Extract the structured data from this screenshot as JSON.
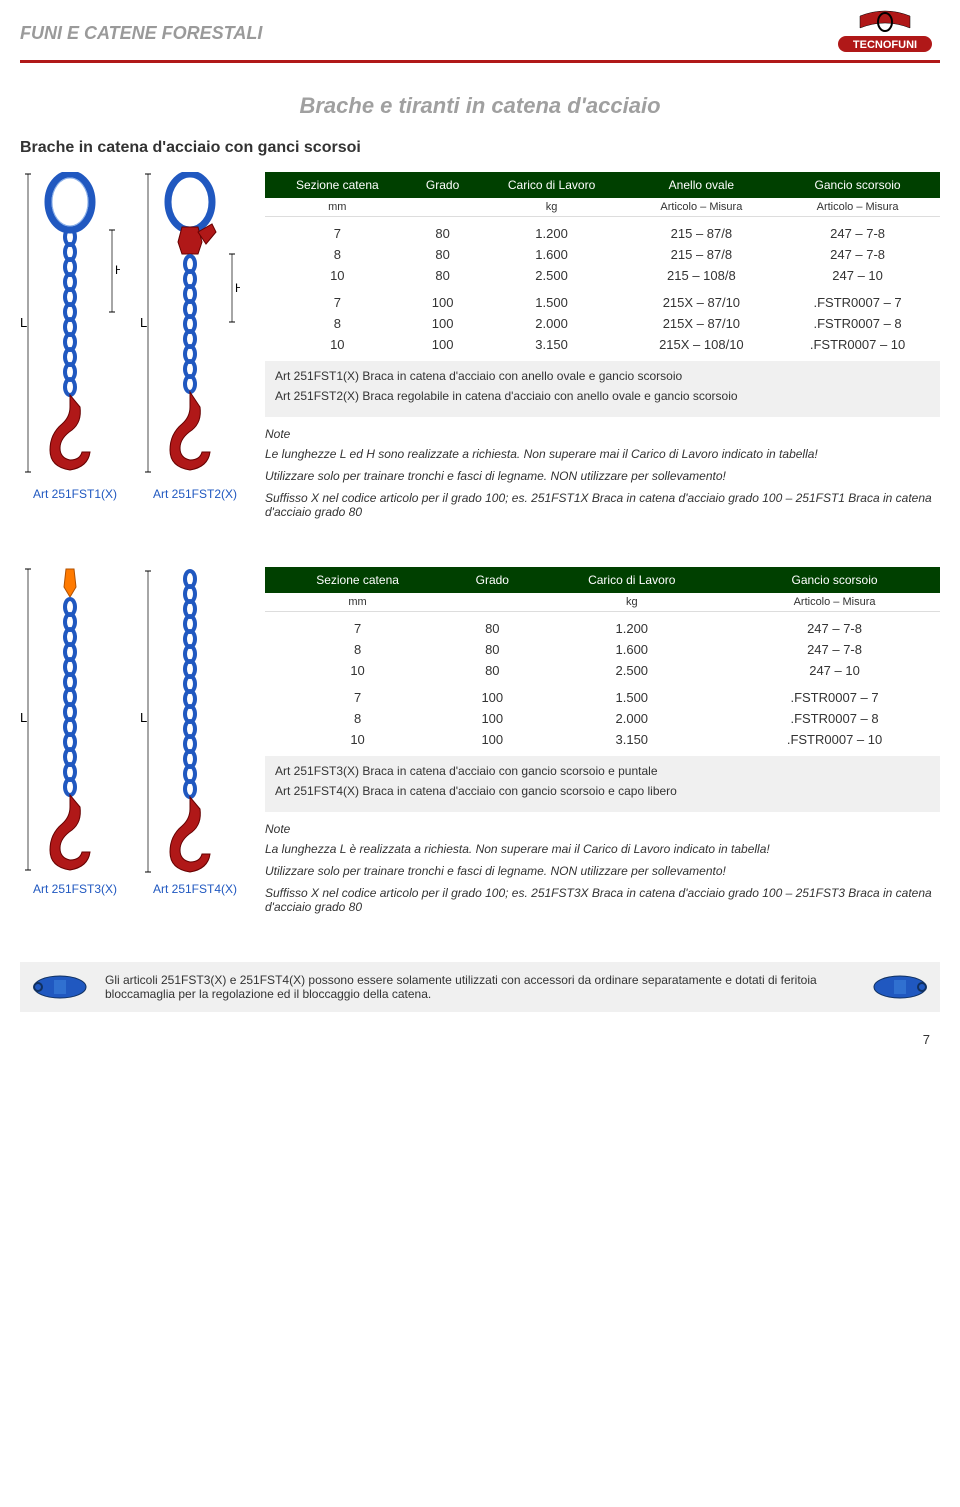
{
  "header": {
    "category": "FUNI E CATENE FORESTALI",
    "logo_text": "TECNOFUNI"
  },
  "page_title": "Brache e tiranti in catena d'acciaio",
  "section1": {
    "subtitle": "Brache in catena d'acciaio con ganci scorsoi",
    "diagram1_label": "Art 251FST1(X)",
    "diagram2_label": "Art 251FST2(X)",
    "table": {
      "headers": [
        "Sezione catena",
        "Grado",
        "Carico di Lavoro",
        "Anello ovale",
        "Gancio scorsoio"
      ],
      "subheaders": [
        "mm",
        "",
        "kg",
        "Articolo – Misura",
        "Articolo – Misura"
      ],
      "rows_a": [
        [
          "7",
          "80",
          "1.200",
          "215 – 87/8",
          "247 – 7-8"
        ],
        [
          "8",
          "80",
          "1.600",
          "215 – 87/8",
          "247 – 7-8"
        ],
        [
          "10",
          "80",
          "2.500",
          "215 – 108/8",
          "247 – 10"
        ]
      ],
      "rows_b": [
        [
          "7",
          "100",
          "1.500",
          "215X – 87/10",
          ".FSTR0007 – 7"
        ],
        [
          "8",
          "100",
          "2.000",
          "215X – 87/10",
          ".FSTR0007 – 8"
        ],
        [
          "10",
          "100",
          "3.150",
          "215X – 108/10",
          ".FSTR0007 – 10"
        ]
      ]
    },
    "desc1": "Art 251FST1(X) Braca in catena d'acciaio con anello ovale e gancio scorsoio",
    "desc2": "Art 251FST2(X) Braca regolabile in catena d'acciaio con anello ovale e gancio scorsoio",
    "note_head": "Note",
    "note1": "Le lunghezze L ed H sono realizzate a richiesta. Non superare mai il Carico di Lavoro indicato in tabella!",
    "note2": "Utilizzare solo per trainare tronchi e fasci di legname. NON utilizzare per sollevamento!",
    "note3": "Suffisso X nel codice articolo per il grado 100; es. 251FST1X Braca in catena d'acciaio grado 100 – 251FST1 Braca in catena d'acciaio grado 80"
  },
  "section2": {
    "diagram1_label": "Art 251FST3(X)",
    "diagram2_label": "Art 251FST4(X)",
    "table": {
      "headers": [
        "Sezione catena",
        "Grado",
        "Carico di Lavoro",
        "Gancio scorsoio"
      ],
      "subheaders": [
        "mm",
        "",
        "kg",
        "Articolo – Misura"
      ],
      "rows_a": [
        [
          "7",
          "80",
          "1.200",
          "247 – 7-8"
        ],
        [
          "8",
          "80",
          "1.600",
          "247 – 7-8"
        ],
        [
          "10",
          "80",
          "2.500",
          "247 – 10"
        ]
      ],
      "rows_b": [
        [
          "7",
          "100",
          "1.500",
          ".FSTR0007 – 7"
        ],
        [
          "8",
          "100",
          "2.000",
          ".FSTR0007 – 8"
        ],
        [
          "10",
          "100",
          "3.150",
          ".FSTR0007 – 10"
        ]
      ]
    },
    "desc1": "Art 251FST3(X) Braca in catena d'acciaio con gancio scorsoio e puntale",
    "desc2": "Art 251FST4(X) Braca in catena d'acciaio con gancio scorsoio e capo libero",
    "note_head": "Note",
    "note1": "La lunghezza L è realizzata a richiesta. Non superare mai il Carico di Lavoro indicato in tabella!",
    "note2": "Utilizzare solo per trainare tronchi e fasci di legname. NON utilizzare per sollevamento!",
    "note3": "Suffisso X nel codice articolo per il grado 100; es. 251FST3X Braca in catena d'acciaio grado 100 – 251FST3 Braca in catena d'acciaio grado 80"
  },
  "footer_note": "Gli articoli 251FST3(X) e 251FST4(X) possono essere solamente utilizzati con accessori da ordinare separatamente e dotati di feritoia bloccamaglia per la regolazione ed il bloccaggio della catena.",
  "page_number": "7",
  "colors": {
    "green_header": "#004000",
    "blue": "#2058c0",
    "red": "#b01818",
    "orange": "#ff7a00",
    "grey_text": "#9a9a9a",
    "grey_bg": "#f0f0f0"
  },
  "dim_labels": {
    "L": "L",
    "H": "H"
  }
}
